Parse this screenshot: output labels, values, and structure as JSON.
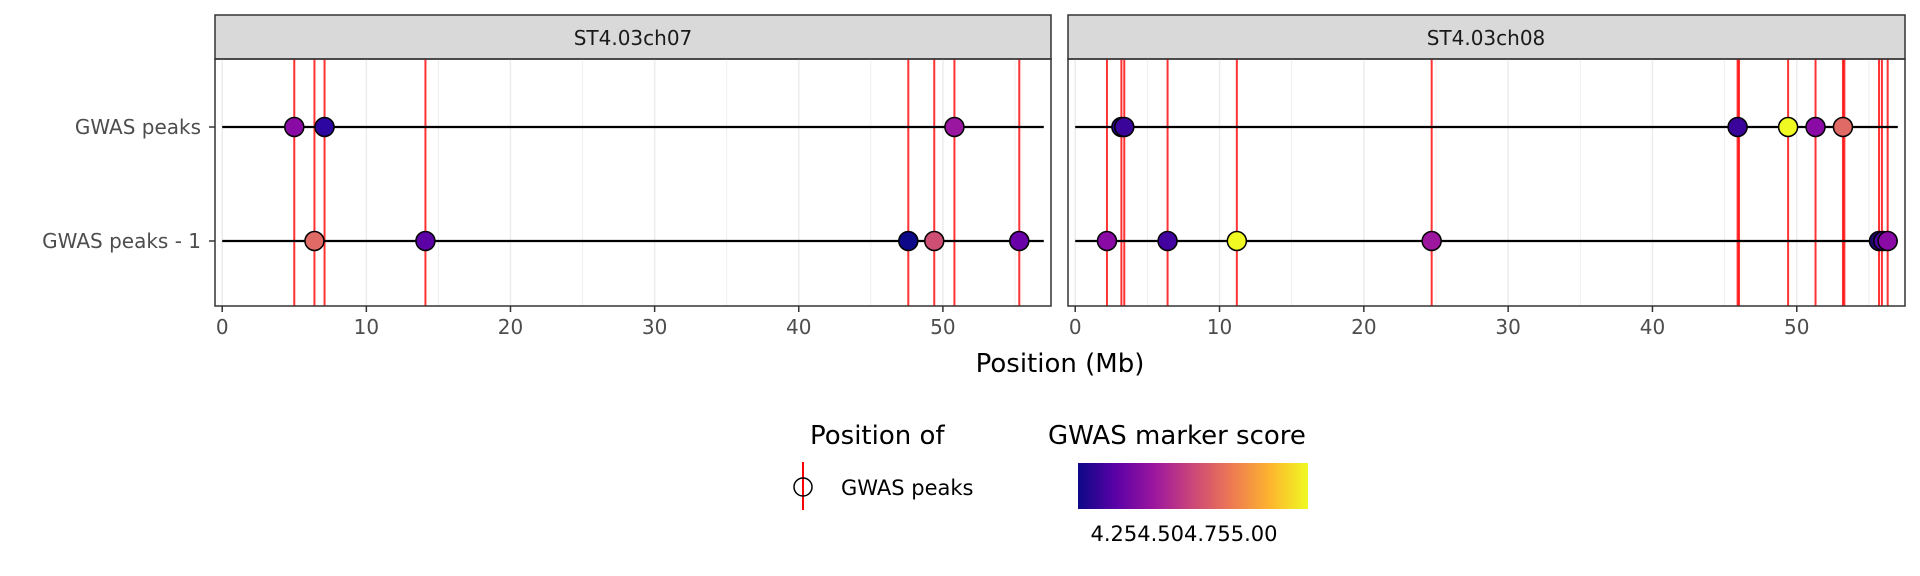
{
  "chart_data": {
    "type": "scatter",
    "xlabel": "Position (Mb)",
    "x_ticks": [
      "0",
      "10",
      "20",
      "30",
      "40",
      "50"
    ],
    "xlim": [
      -0.5,
      57.5
    ],
    "y_categories": [
      "GWAS peaks",
      "GWAS peaks - 1"
    ],
    "grid": true,
    "colors": {
      "peak_line": "#ff0000",
      "gradient": [
        "#0d0887",
        "#5c01a6",
        "#9c179e",
        "#cc4778",
        "#ed7953",
        "#fdb42f",
        "#f0f921"
      ]
    },
    "panels": [
      {
        "strip": "ST4.03ch07",
        "vlines": [
          5.0,
          6.4,
          7.1,
          14.1,
          47.6,
          49.4,
          50.8,
          55.3
        ],
        "points": [
          {
            "row": "GWAS peaks",
            "x": 5.0,
            "color": "#8a0aa5"
          },
          {
            "row": "GWAS peaks",
            "x": 7.1,
            "color": "#2d05a0"
          },
          {
            "row": "GWAS peaks",
            "x": 50.8,
            "color": "#9a16a0"
          },
          {
            "row": "GWAS peaks - 1",
            "x": 6.4,
            "color": "#e06a66"
          },
          {
            "row": "GWAS peaks - 1",
            "x": 14.1,
            "color": "#5b01a6"
          },
          {
            "row": "GWAS peaks - 1",
            "x": 47.6,
            "color": "#0d0887"
          },
          {
            "row": "GWAS peaks - 1",
            "x": 49.4,
            "color": "#cf4e73"
          },
          {
            "row": "GWAS peaks - 1",
            "x": 55.3,
            "color": "#6a00a8"
          }
        ]
      },
      {
        "strip": "ST4.03ch08",
        "vlines": [
          2.2,
          3.2,
          3.4,
          6.4,
          11.2,
          24.7,
          45.9,
          46.0,
          49.4,
          51.3,
          53.2,
          53.3,
          55.7,
          55.9,
          56.3
        ],
        "points": [
          {
            "row": "GWAS peaks",
            "x": 3.2,
            "color": "#2a0593"
          },
          {
            "row": "GWAS peaks",
            "x": 3.4,
            "color": "#3a049a"
          },
          {
            "row": "GWAS peaks",
            "x": 45.9,
            "color": "#3a049a"
          },
          {
            "row": "GWAS peaks",
            "x": 49.4,
            "color": "#f0f921"
          },
          {
            "row": "GWAS peaks",
            "x": 51.3,
            "color": "#8a0aa5"
          },
          {
            "row": "GWAS peaks",
            "x": 53.2,
            "color": "#e06a66"
          },
          {
            "row": "GWAS peaks - 1",
            "x": 2.2,
            "color": "#8a0aa5"
          },
          {
            "row": "GWAS peaks - 1",
            "x": 6.4,
            "color": "#4203a0"
          },
          {
            "row": "GWAS peaks - 1",
            "x": 11.2,
            "color": "#f0f921"
          },
          {
            "row": "GWAS peaks - 1",
            "x": 24.7,
            "color": "#9c179e"
          },
          {
            "row": "GWAS peaks - 1",
            "x": 55.7,
            "color": "#1c0a6e"
          },
          {
            "row": "GWAS peaks - 1",
            "x": 56.0,
            "color": "#4a02a0"
          },
          {
            "row": "GWAS peaks - 1",
            "x": 56.3,
            "color": "#8a0aa5"
          }
        ]
      }
    ],
    "legend": {
      "placement": "bottom",
      "position_title": "Position of",
      "position_label": "GWAS peaks",
      "score_title": "GWAS marker score",
      "score_labels": "4.254.504.755.00"
    }
  }
}
